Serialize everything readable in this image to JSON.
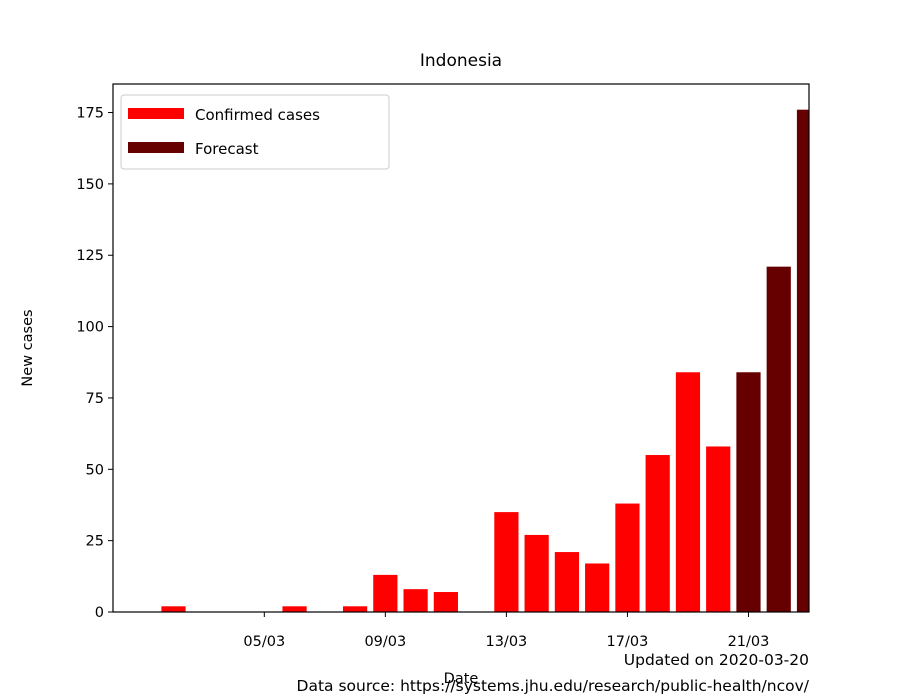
{
  "chart_data": {
    "type": "bar",
    "title": "Indonesia",
    "xlabel": "Date",
    "ylabel": "New cases",
    "ylim": [
      0,
      185
    ],
    "yticks": [
      0,
      25,
      50,
      75,
      100,
      125,
      150,
      175
    ],
    "xticks": [
      "05/03",
      "09/03",
      "13/03",
      "17/03",
      "21/03"
    ],
    "xtick_dates": [
      "2020-03-05",
      "2020-03-09",
      "2020-03-13",
      "2020-03-17",
      "2020-03-21"
    ],
    "xlim": [
      "2020-02-29",
      "2020-03-23"
    ],
    "grid": false,
    "legend_position": "top-left",
    "series": [
      {
        "name": "Confirmed cases",
        "color": "#ff0000",
        "dates": [
          "2020-03-02",
          "2020-03-03",
          "2020-03-04",
          "2020-03-05",
          "2020-03-06",
          "2020-03-07",
          "2020-03-08",
          "2020-03-09",
          "2020-03-10",
          "2020-03-11",
          "2020-03-12",
          "2020-03-13",
          "2020-03-14",
          "2020-03-15",
          "2020-03-16",
          "2020-03-17",
          "2020-03-18",
          "2020-03-19",
          "2020-03-20"
        ],
        "values": [
          2,
          0,
          0,
          0,
          2,
          0,
          2,
          13,
          8,
          7,
          0,
          35,
          27,
          21,
          17,
          38,
          55,
          84,
          58
        ]
      },
      {
        "name": "Forecast",
        "color": "#660000",
        "dates": [
          "2020-03-21",
          "2020-03-22",
          "2020-03-23"
        ],
        "values": [
          84,
          121,
          176
        ]
      }
    ]
  },
  "footer": {
    "updated": "Updated on 2020-03-20",
    "source": "Data source: https://systems.jhu.edu/research/public-health/ncov/"
  }
}
